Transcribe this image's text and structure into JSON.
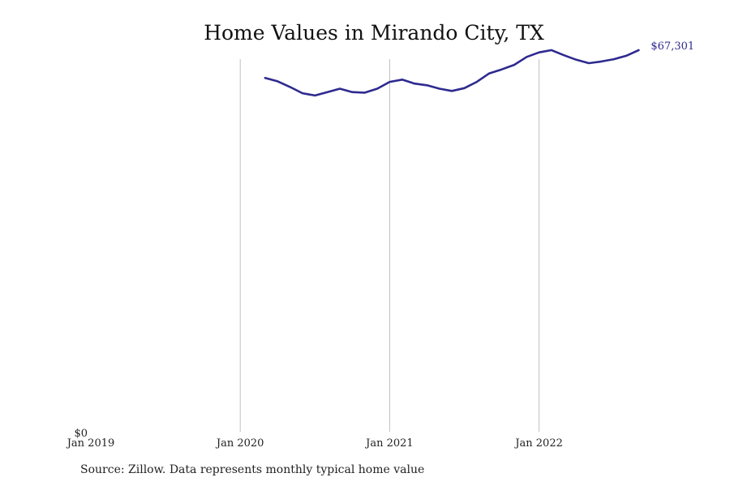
{
  "source": "Source: Zillow. Data represents monthly typical home value",
  "colors": {
    "line": "#2e2a8f",
    "grid": "#c0c0c0",
    "text": "#222222"
  },
  "chart_data": {
    "type": "line",
    "title": "Home Values in Mirando City, TX",
    "xlabel": "",
    "ylabel": "",
    "x_ticks": [
      "Jan 2019",
      "Jan 2020",
      "Jan 2021",
      "Jan 2022"
    ],
    "y_ticks": [
      "$0"
    ],
    "ylim": [
      0,
      70000
    ],
    "xlim": [
      "2019-01",
      "2022-12"
    ],
    "grid": "vertical",
    "end_label": "$67,301",
    "series": [
      {
        "x": [
          "2020-03",
          "2020-04",
          "2020-05",
          "2020-06",
          "2020-07",
          "2020-08",
          "2020-09",
          "2020-10",
          "2020-11",
          "2020-12",
          "2021-01",
          "2021-02",
          "2021-03",
          "2021-04",
          "2021-05",
          "2021-06",
          "2021-07",
          "2021-08",
          "2021-09",
          "2021-10",
          "2021-11",
          "2021-12",
          "2022-01",
          "2022-02",
          "2022-03",
          "2022-04",
          "2022-05",
          "2022-06",
          "2022-07",
          "2022-08",
          "2022-09"
        ],
        "values": [
          62400,
          61800,
          60800,
          59700,
          59300,
          59900,
          60500,
          59900,
          59800,
          60500,
          61700,
          62100,
          61400,
          61100,
          60500,
          60100,
          60600,
          61700,
          63200,
          63900,
          64700,
          66100,
          66900,
          67300,
          66400,
          65600,
          65000,
          65300,
          65700,
          66300,
          67301
        ]
      }
    ]
  }
}
